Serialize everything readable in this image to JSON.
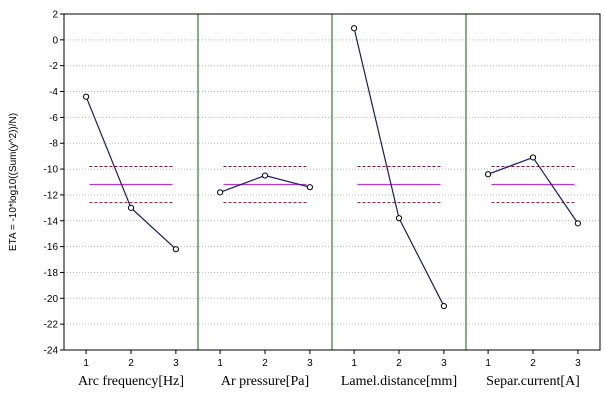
{
  "chart_data": {
    "type": "line",
    "ylabel": "ETA = -10*log10((Sum(y^2))/N)",
    "ylim": [
      -24,
      2
    ],
    "y_ticks": [
      2,
      0,
      -2,
      -4,
      -6,
      -8,
      -10,
      -12,
      -14,
      -16,
      -18,
      -20,
      -22,
      -24
    ],
    "mean_line": -11.2,
    "ci_lines": [
      -9.8,
      -12.6
    ],
    "grid": "horizontal dotted",
    "colors": {
      "series": "#1a1a66",
      "mean": "#b040c0",
      "ci": "#7a1a2a",
      "panel_divider": "#2e7d32",
      "grid": "#b8b8b8"
    },
    "panels": [
      {
        "label": "Arc frequency[Hz]",
        "x": [
          "1",
          "2",
          "3"
        ],
        "values": [
          -4.4,
          -13.0,
          -16.2
        ]
      },
      {
        "label": "Ar pressure[Pa]",
        "x": [
          "1",
          "2",
          "3"
        ],
        "values": [
          -11.8,
          -10.5,
          -11.4
        ]
      },
      {
        "label": "Lamel.distance[mm]",
        "x": [
          "1",
          "2",
          "3"
        ],
        "values": [
          0.9,
          -13.8,
          -20.6
        ]
      },
      {
        "label": "Separ.current[A]",
        "x": [
          "1",
          "2",
          "3"
        ],
        "values": [
          -10.4,
          -9.1,
          -14.2
        ]
      }
    ]
  }
}
